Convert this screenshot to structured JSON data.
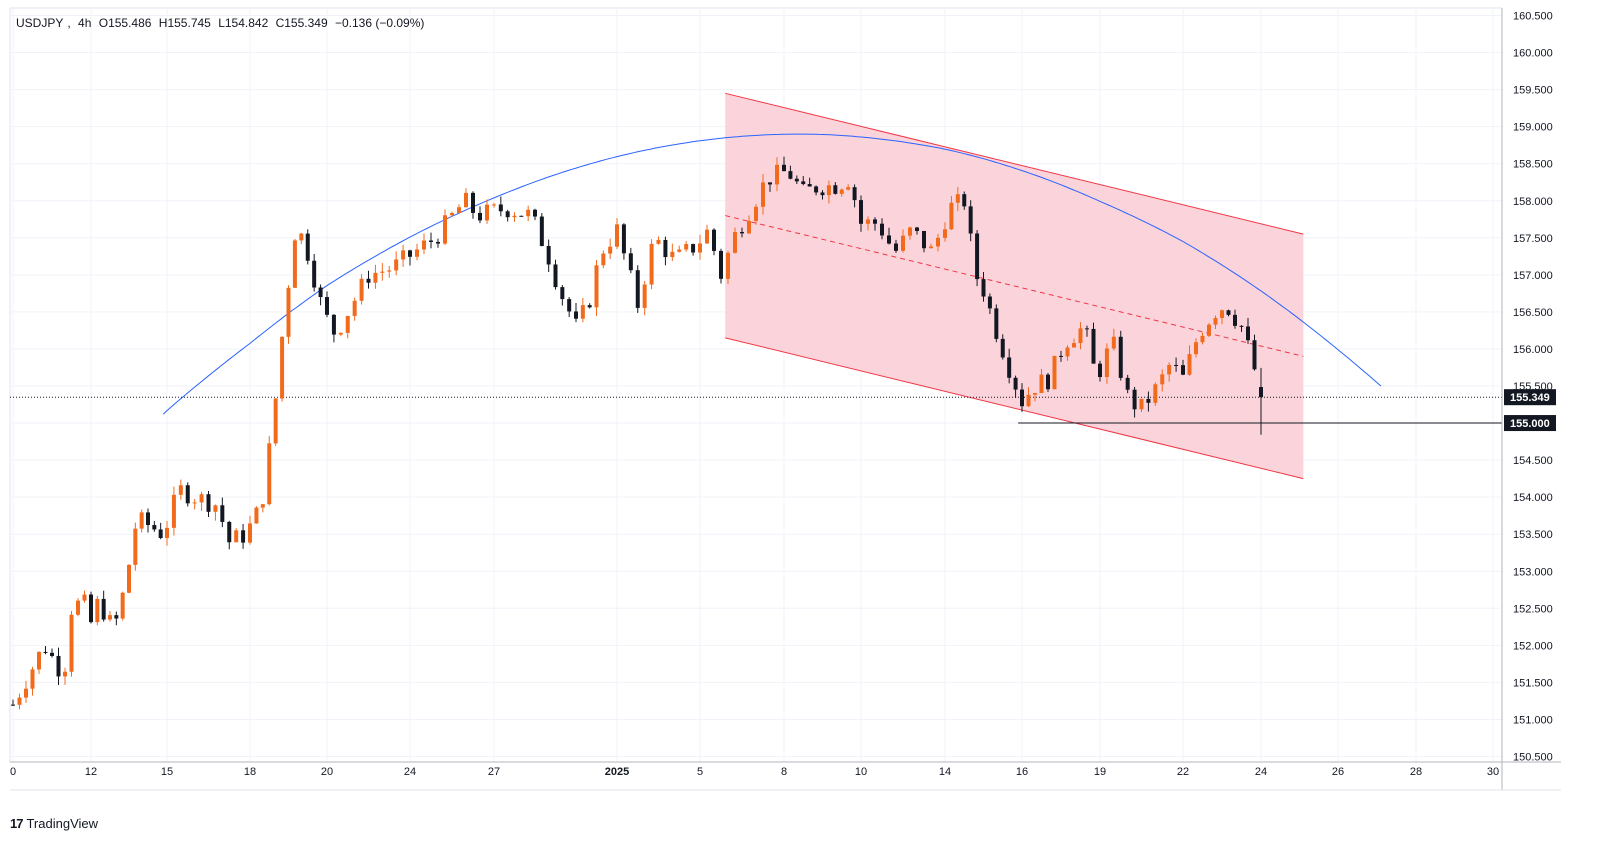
{
  "legend": {
    "symbol": "USDJPY",
    "interval": "4h",
    "open": "O155.486",
    "high": "H155.745",
    "low": "L154.842",
    "close": "C155.349",
    "change": "−0.136 (−0.09%)"
  },
  "brand": {
    "logo_text": "17",
    "name": "TradingView"
  },
  "price_labels": {
    "last": "155.349",
    "level": "155.000"
  },
  "colors": {
    "up": "#f26b1d",
    "down": "#131722",
    "channel": "#f23645",
    "channel_fill": "#f9cdd3",
    "arc": "#2962ff",
    "grid": "#f0f3fa"
  },
  "chart_data": {
    "type": "candlestick",
    "symbol": "USDJPY",
    "interval": "4h",
    "y_ticks": [
      "150.500",
      "151.000",
      "151.500",
      "152.000",
      "152.500",
      "153.000",
      "153.500",
      "154.000",
      "154.500",
      "155.000",
      "155.500",
      "156.000",
      "156.500",
      "157.000",
      "157.500",
      "158.000",
      "158.500",
      "159.000",
      "159.500",
      "160.000",
      "160.500"
    ],
    "ylim": [
      150.45,
      160.6
    ],
    "x_ticks": [
      {
        "label": "0",
        "day": 0
      },
      {
        "label": "12",
        "day": 2
      },
      {
        "label": "15",
        "day": 4
      },
      {
        "label": "18",
        "day": 6
      },
      {
        "label": "20",
        "day": 8
      },
      {
        "label": "24",
        "day": 10
      },
      {
        "label": "27",
        "day": 12
      },
      {
        "label": "2025",
        "day": 15
      },
      {
        "label": "5",
        "day": 17
      },
      {
        "label": "8",
        "day": 19
      },
      {
        "label": "10",
        "day": 21
      },
      {
        "label": "14",
        "day": 23
      },
      {
        "label": "16",
        "day": 25
      },
      {
        "label": "19",
        "day": 27
      },
      {
        "label": "22",
        "day": 29
      },
      {
        "label": "24",
        "day": 31
      },
      {
        "label": "26",
        "day": 33
      },
      {
        "label": "28",
        "day": 35
      },
      {
        "label": "30",
        "day": 37
      }
    ],
    "anchors": [
      [
        0,
        151.2
      ],
      [
        0.3,
        151.5
      ],
      [
        0.8,
        152.0
      ],
      [
        1.3,
        151.6
      ],
      [
        1.5,
        152.5
      ],
      [
        1.8,
        152.6
      ],
      [
        2.0,
        152.3
      ],
      [
        2.2,
        152.6
      ],
      [
        2.6,
        152.2
      ],
      [
        2.9,
        152.8
      ],
      [
        3.2,
        153.7
      ],
      [
        3.6,
        153.6
      ],
      [
        3.9,
        153.5
      ],
      [
        4.3,
        154.1
      ],
      [
        4.7,
        154.0
      ],
      [
        5.2,
        153.9
      ],
      [
        5.5,
        153.4
      ],
      [
        5.9,
        153.5
      ],
      [
        6.3,
        153.9
      ],
      [
        6.6,
        155.0
      ],
      [
        6.9,
        156.5
      ],
      [
        7.2,
        157.7
      ],
      [
        7.5,
        157.3
      ],
      [
        7.9,
        156.5
      ],
      [
        8.2,
        156.2
      ],
      [
        8.5,
        156.5
      ],
      [
        9.0,
        157.0
      ],
      [
        9.6,
        157.1
      ],
      [
        10.1,
        157.3
      ],
      [
        10.6,
        157.5
      ],
      [
        11.3,
        158.0
      ],
      [
        11.6,
        157.8
      ],
      [
        12.3,
        157.9
      ],
      [
        12.9,
        157.8
      ],
      [
        13.3,
        157.3
      ],
      [
        13.6,
        156.8
      ],
      [
        14.0,
        156.3
      ],
      [
        14.3,
        156.6
      ],
      [
        14.6,
        157.3
      ],
      [
        15.0,
        157.6
      ],
      [
        15.5,
        156.6
      ],
      [
        15.9,
        157.5
      ],
      [
        16.4,
        157.2
      ],
      [
        16.9,
        157.4
      ],
      [
        17.2,
        157.6
      ],
      [
        17.5,
        157.0
      ],
      [
        17.8,
        157.5
      ],
      [
        18.2,
        157.9
      ],
      [
        18.6,
        158.3
      ],
      [
        19.1,
        158.4
      ],
      [
        19.5,
        158.1
      ],
      [
        19.9,
        158.2
      ],
      [
        20.3,
        158.2
      ],
      [
        20.7,
        158.3
      ],
      [
        21.0,
        157.7
      ],
      [
        21.4,
        157.7
      ],
      [
        21.8,
        157.3
      ],
      [
        22.2,
        157.6
      ],
      [
        22.7,
        157.3
      ],
      [
        23.1,
        157.9
      ],
      [
        23.5,
        158.0
      ],
      [
        23.8,
        157.0
      ],
      [
        24.0,
        156.8
      ],
      [
        24.3,
        156.3
      ],
      [
        24.7,
        155.7
      ],
      [
        25.0,
        155.3
      ],
      [
        25.3,
        155.5
      ],
      [
        25.7,
        155.6
      ],
      [
        26.1,
        156.1
      ],
      [
        26.6,
        156.3
      ],
      [
        26.9,
        155.6
      ],
      [
        27.3,
        156.1
      ],
      [
        27.7,
        155.3
      ],
      [
        28.0,
        155.2
      ],
      [
        28.4,
        155.5
      ],
      [
        28.7,
        155.8
      ],
      [
        29.0,
        155.6
      ],
      [
        29.4,
        156.2
      ],
      [
        29.8,
        156.5
      ],
      [
        30.1,
        156.6
      ],
      [
        30.5,
        156.3
      ],
      [
        30.8,
        155.8
      ],
      [
        31.0,
        155.35
      ]
    ],
    "last_candle": {
      "day": 31.0,
      "open": 155.486,
      "high": 155.745,
      "low": 154.842,
      "close": 155.349
    },
    "horizontal_level": {
      "price": 155.0,
      "from_day": 24.9
    },
    "channel": {
      "upper": [
        [
          17.6,
          159.45
        ],
        [
          32.1,
          157.55
        ]
      ],
      "lower": [
        [
          17.6,
          156.15
        ],
        [
          32.1,
          154.25
        ]
      ],
      "mid": [
        [
          17.6,
          157.8
        ],
        [
          32.1,
          155.9
        ]
      ]
    },
    "arc": {
      "from_day": 3.9,
      "to_day": 34.1,
      "peak_day": 19.4,
      "peak_price": 158.9,
      "end_price": 155.5
    },
    "last_price": 155.349
  }
}
